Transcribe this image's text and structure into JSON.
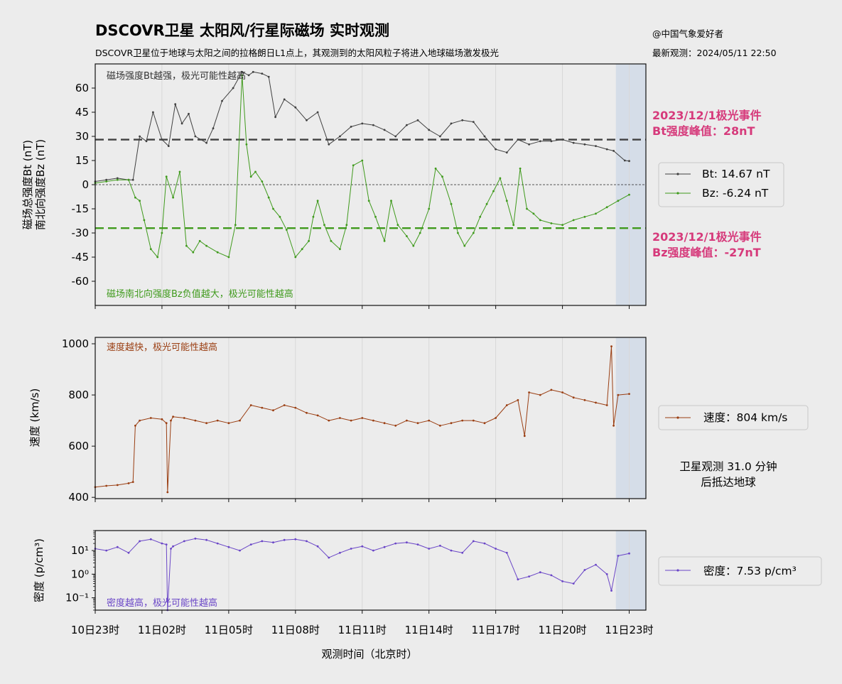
{
  "header": {
    "title": "DSCOVR卫星 太阳风/行星际磁场 实时观测",
    "subtitle": "DSCOVR卫星位于地球与太阳之间的拉格朗日L1点上，其观测到的太阳风粒子将进入地球磁场激发极光",
    "credit": "@中国气象爱好者",
    "latest": "最新观测：2024/05/11 22:50"
  },
  "colors": {
    "bt": "#404040",
    "bz": "#3f9a1c",
    "speed": "#9a3e12",
    "density": "#6a46c7",
    "event": "#d63a7b",
    "shade": "#d5dde8"
  },
  "side": {
    "event_bt_line1": "2023/12/1极光事件",
    "event_bt_line2": "Bt强度峰值：28nT",
    "event_bz_line1": "2023/12/1极光事件",
    "event_bz_line2": "Bz强度峰值：-27nT",
    "arrival_line1": "卫星观测 31.0 分钟",
    "arrival_line2": "后抵达地球"
  },
  "chart_data": [
    {
      "type": "line",
      "panel": "magnetic",
      "ylabel_line1": "磁场总强度Bt (nT)",
      "ylabel_line2": "南北向强度Bz (nT)",
      "xlim": [
        0,
        24.75
      ],
      "ylim": [
        -75,
        75
      ],
      "yticks": [
        60,
        45,
        30,
        15,
        0,
        -15,
        -30,
        -45,
        -60
      ],
      "ytick_labels": [
        "60",
        "45",
        "30",
        "15",
        "0",
        "-15",
        "-30",
        "-45",
        "-60"
      ],
      "reference_lines": [
        28,
        -27
      ],
      "note_top": "磁场强度Bt越强，极光可能性越高",
      "note_bottom": "磁场南北向强度Bz负值越大，极光可能性越高",
      "series": [
        {
          "name": "Bt",
          "legend": "Bt: 14.67 nT",
          "x": [
            0,
            0.5,
            1.0,
            1.5,
            1.7,
            2.0,
            2.3,
            2.6,
            3.0,
            3.3,
            3.6,
            3.9,
            4.2,
            4.5,
            5.0,
            5.3,
            5.7,
            6.2,
            6.6,
            6.9,
            7.1,
            7.5,
            7.8,
            8.1,
            8.5,
            9.0,
            9.5,
            10.0,
            10.5,
            11.0,
            11.5,
            12.0,
            12.5,
            13.0,
            13.5,
            14.0,
            14.5,
            15.0,
            15.5,
            16.0,
            16.5,
            17.0,
            17.5,
            18.0,
            18.5,
            19.0,
            19.5,
            20.0,
            20.5,
            21.0,
            21.5,
            22.0,
            22.5,
            23.0,
            23.3,
            23.8,
            24.0
          ],
          "values": [
            2,
            3,
            4,
            3,
            3,
            30,
            27,
            45,
            28,
            24,
            50,
            38,
            44,
            30,
            26,
            35,
            52,
            60,
            70,
            68,
            70,
            69,
            67,
            42,
            53,
            48,
            40,
            45,
            25,
            30,
            36,
            38,
            37,
            34,
            30,
            37,
            40,
            34,
            30,
            38,
            40,
            39,
            30,
            22,
            20,
            28,
            25,
            27,
            27,
            28,
            26,
            25,
            24,
            22,
            21,
            15,
            14.67
          ]
        },
        {
          "name": "Bz",
          "legend": "Bz: -6.24 nT",
          "x": [
            0,
            0.5,
            1.0,
            1.5,
            1.8,
            2.0,
            2.2,
            2.5,
            2.8,
            3.0,
            3.2,
            3.5,
            3.8,
            4.1,
            4.4,
            4.7,
            5.0,
            5.5,
            6.0,
            6.3,
            6.6,
            6.8,
            7.0,
            7.2,
            7.5,
            7.8,
            8.0,
            8.3,
            8.6,
            9.0,
            9.3,
            9.6,
            9.8,
            10.0,
            10.3,
            10.6,
            11.0,
            11.3,
            11.6,
            12.0,
            12.3,
            12.6,
            13.0,
            13.3,
            13.6,
            14.0,
            14.3,
            14.6,
            15.0,
            15.3,
            15.6,
            16.0,
            16.3,
            16.6,
            17.0,
            17.3,
            17.6,
            17.9,
            18.2,
            18.5,
            18.8,
            19.1,
            19.4,
            19.7,
            20.0,
            20.5,
            21.0,
            21.5,
            22.0,
            22.5,
            23.0,
            23.5,
            24.0
          ],
          "values": [
            1,
            2,
            3,
            3,
            -8,
            -10,
            -22,
            -40,
            -45,
            -30,
            5,
            -8,
            8,
            -38,
            -42,
            -35,
            -38,
            -42,
            -45,
            -25,
            68,
            25,
            5,
            8,
            2,
            -8,
            -15,
            -20,
            -28,
            -45,
            -40,
            -35,
            -20,
            -10,
            -25,
            -35,
            -40,
            -25,
            12,
            15,
            -10,
            -20,
            -35,
            -10,
            -25,
            -32,
            -38,
            -30,
            -15,
            10,
            5,
            -12,
            -30,
            -38,
            -30,
            -20,
            -12,
            -4,
            4,
            -10,
            -25,
            10,
            -15,
            -18,
            -22,
            -24,
            -25,
            -22,
            -20,
            -18,
            -14,
            -10,
            -6.24
          ]
        }
      ]
    },
    {
      "type": "line",
      "panel": "speed",
      "ylabel": "速度 (km/s)",
      "xlim": [
        0,
        24.75
      ],
      "ylim": [
        395,
        1025
      ],
      "yticks": [
        1000,
        800,
        600,
        400
      ],
      "ytick_labels": [
        "1000",
        "800",
        "600",
        "400"
      ],
      "note_top": "速度越快，极光可能性越高",
      "series": [
        {
          "name": "速度",
          "legend": "速度：804 km/s",
          "x": [
            0,
            0.5,
            1.0,
            1.5,
            1.7,
            1.8,
            2.0,
            2.5,
            3.0,
            3.2,
            3.25,
            3.4,
            3.5,
            4.0,
            4.5,
            5.0,
            5.5,
            6.0,
            6.5,
            7.0,
            7.5,
            8.0,
            8.5,
            9.0,
            9.5,
            10.0,
            10.5,
            11.0,
            11.5,
            12.0,
            12.5,
            13.0,
            13.5,
            14.0,
            14.5,
            15.0,
            15.5,
            16.0,
            16.5,
            17.0,
            17.5,
            18.0,
            18.5,
            19.0,
            19.3,
            19.5,
            20.0,
            20.5,
            21.0,
            21.5,
            22.0,
            22.5,
            23.0,
            23.2,
            23.3,
            23.5,
            24.0
          ],
          "values": [
            440,
            445,
            448,
            455,
            460,
            680,
            700,
            710,
            705,
            690,
            420,
            700,
            715,
            710,
            700,
            690,
            700,
            690,
            700,
            760,
            750,
            740,
            760,
            750,
            730,
            720,
            700,
            710,
            700,
            710,
            700,
            690,
            680,
            700,
            690,
            700,
            680,
            690,
            700,
            700,
            690,
            710,
            760,
            780,
            640,
            810,
            800,
            820,
            810,
            790,
            780,
            770,
            760,
            990,
            680,
            800,
            804
          ]
        }
      ]
    },
    {
      "type": "line",
      "panel": "density",
      "ylabel": "密度 (p/cm³)",
      "yscale": "log",
      "xlim": [
        0,
        24.75
      ],
      "ylim": [
        0.03,
        70
      ],
      "yticks": [
        10,
        1,
        0.1
      ],
      "ytick_labels": [
        "10¹",
        "10⁰",
        "10⁻¹"
      ],
      "note_bottom": "密度越高，极光可能性越高",
      "series": [
        {
          "name": "密度",
          "legend": "密度：7.53 p/cm³",
          "x": [
            0,
            0.5,
            1.0,
            1.5,
            2.0,
            2.5,
            3.0,
            3.2,
            3.25,
            3.4,
            3.5,
            4.0,
            4.5,
            5.0,
            5.5,
            6.0,
            6.5,
            7.0,
            7.5,
            8.0,
            8.5,
            9.0,
            9.5,
            10.0,
            10.5,
            11.0,
            11.5,
            12.0,
            12.5,
            13.0,
            13.5,
            14.0,
            14.5,
            15.0,
            15.5,
            16.0,
            16.5,
            17.0,
            17.5,
            18.0,
            18.5,
            19.0,
            19.5,
            20.0,
            20.5,
            21.0,
            21.5,
            22.0,
            22.5,
            23.0,
            23.2,
            23.5,
            24.0
          ],
          "values": [
            12,
            10,
            14,
            8,
            25,
            30,
            20,
            18,
            0.03,
            12,
            15,
            25,
            32,
            28,
            20,
            14,
            10,
            18,
            25,
            22,
            28,
            30,
            25,
            15,
            5,
            8,
            12,
            15,
            10,
            14,
            20,
            22,
            18,
            12,
            16,
            10,
            8,
            25,
            20,
            12,
            8,
            0.6,
            0.8,
            1.2,
            0.9,
            0.5,
            0.4,
            1.5,
            2.5,
            1.0,
            0.2,
            6,
            7.53
          ]
        }
      ]
    }
  ],
  "xaxis": {
    "label": "观测时间（北京时）",
    "ticks": [
      0,
      3,
      6,
      9,
      12,
      15,
      18,
      21,
      24
    ],
    "tick_labels": [
      "10日23时",
      "11日02时",
      "11日05时",
      "11日08时",
      "11日11时",
      "11日14时",
      "11日17时",
      "11日20时",
      "11日23时"
    ],
    "forecast_start": 23.4,
    "xlim": [
      0,
      24.75
    ]
  }
}
